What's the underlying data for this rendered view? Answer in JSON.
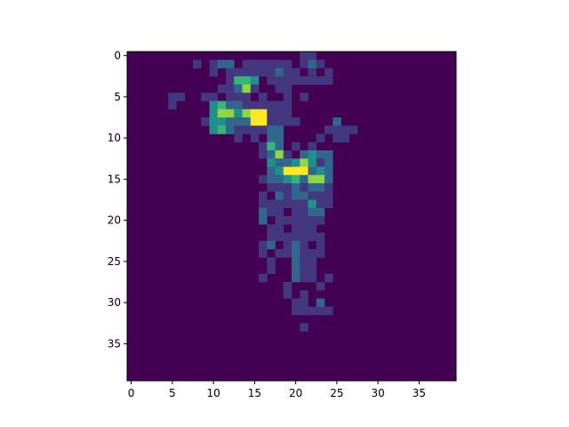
{
  "chart_data": {
    "type": "heatmap",
    "rows": 40,
    "cols": 40,
    "xlim": [
      -0.5,
      39.5
    ],
    "ylim": [
      39.5,
      -0.5
    ],
    "xticks": [
      0,
      5,
      10,
      15,
      20,
      25,
      30,
      35
    ],
    "yticks": [
      0,
      5,
      10,
      15,
      20,
      25,
      30,
      35
    ],
    "colormap": "viridis",
    "vmin": 0,
    "vmax": 6,
    "cells": [
      [
        0,
        21,
        1
      ],
      [
        0,
        22,
        1
      ],
      [
        1,
        8,
        1
      ],
      [
        1,
        10,
        1
      ],
      [
        1,
        11,
        2
      ],
      [
        1,
        12,
        2
      ],
      [
        1,
        14,
        1
      ],
      [
        1,
        15,
        1
      ],
      [
        1,
        16,
        1
      ],
      [
        1,
        17,
        1
      ],
      [
        1,
        18,
        1
      ],
      [
        1,
        19,
        1
      ],
      [
        1,
        21,
        1
      ],
      [
        1,
        22,
        2
      ],
      [
        1,
        23,
        1
      ],
      [
        2,
        10,
        1
      ],
      [
        2,
        12,
        1
      ],
      [
        2,
        13,
        1
      ],
      [
        2,
        14,
        1
      ],
      [
        2,
        15,
        1
      ],
      [
        2,
        16,
        1
      ],
      [
        2,
        17,
        1
      ],
      [
        2,
        18,
        2
      ],
      [
        2,
        19,
        1
      ],
      [
        2,
        20,
        1
      ],
      [
        2,
        22,
        1
      ],
      [
        2,
        24,
        1
      ],
      [
        3,
        12,
        1
      ],
      [
        3,
        13,
        4
      ],
      [
        3,
        14,
        4
      ],
      [
        3,
        15,
        3
      ],
      [
        3,
        17,
        1
      ],
      [
        3,
        18,
        1
      ],
      [
        3,
        19,
        1
      ],
      [
        3,
        20,
        1
      ],
      [
        3,
        21,
        1
      ],
      [
        3,
        22,
        1
      ],
      [
        3,
        23,
        1
      ],
      [
        3,
        24,
        1
      ],
      [
        4,
        11,
        1
      ],
      [
        4,
        12,
        1
      ],
      [
        4,
        13,
        2
      ],
      [
        4,
        14,
        5
      ],
      [
        4,
        15,
        1
      ],
      [
        4,
        18,
        1
      ],
      [
        4,
        19,
        1
      ],
      [
        5,
        5,
        1
      ],
      [
        5,
        6,
        1
      ],
      [
        5,
        9,
        1
      ],
      [
        5,
        10,
        1
      ],
      [
        5,
        12,
        1
      ],
      [
        5,
        13,
        1
      ],
      [
        5,
        14,
        1
      ],
      [
        5,
        16,
        1
      ],
      [
        5,
        19,
        1
      ],
      [
        5,
        21,
        1
      ],
      [
        6,
        5,
        1
      ],
      [
        6,
        10,
        3
      ],
      [
        6,
        11,
        4
      ],
      [
        6,
        12,
        2
      ],
      [
        6,
        13,
        2
      ],
      [
        6,
        14,
        1
      ],
      [
        6,
        15,
        1
      ],
      [
        6,
        16,
        1
      ],
      [
        6,
        17,
        1
      ],
      [
        6,
        18,
        1
      ],
      [
        6,
        19,
        1
      ],
      [
        7,
        10,
        3
      ],
      [
        7,
        11,
        5
      ],
      [
        7,
        12,
        5
      ],
      [
        7,
        13,
        3
      ],
      [
        7,
        14,
        5
      ],
      [
        7,
        15,
        6
      ],
      [
        7,
        16,
        6
      ],
      [
        7,
        17,
        1
      ],
      [
        7,
        18,
        1
      ],
      [
        7,
        19,
        1
      ],
      [
        8,
        9,
        1
      ],
      [
        8,
        10,
        3
      ],
      [
        8,
        11,
        3
      ],
      [
        8,
        12,
        2
      ],
      [
        8,
        13,
        2
      ],
      [
        8,
        14,
        2
      ],
      [
        8,
        15,
        6
      ],
      [
        8,
        16,
        6
      ],
      [
        8,
        17,
        1
      ],
      [
        8,
        18,
        1
      ],
      [
        8,
        19,
        1
      ],
      [
        8,
        20,
        1
      ],
      [
        8,
        25,
        2
      ],
      [
        9,
        10,
        3
      ],
      [
        9,
        11,
        4
      ],
      [
        9,
        12,
        2
      ],
      [
        9,
        13,
        1
      ],
      [
        9,
        14,
        1
      ],
      [
        9,
        15,
        1
      ],
      [
        9,
        16,
        1
      ],
      [
        9,
        17,
        2
      ],
      [
        9,
        18,
        2
      ],
      [
        9,
        24,
        1
      ],
      [
        9,
        25,
        1
      ],
      [
        9,
        26,
        1
      ],
      [
        9,
        27,
        1
      ],
      [
        10,
        13,
        1
      ],
      [
        10,
        15,
        1
      ],
      [
        10,
        17,
        2
      ],
      [
        10,
        18,
        2
      ],
      [
        10,
        23,
        1
      ],
      [
        10,
        25,
        1
      ],
      [
        10,
        26,
        1
      ],
      [
        11,
        16,
        1
      ],
      [
        11,
        17,
        4
      ],
      [
        11,
        18,
        2
      ],
      [
        11,
        20,
        1
      ],
      [
        11,
        22,
        1
      ],
      [
        12,
        16,
        1
      ],
      [
        12,
        17,
        2
      ],
      [
        12,
        18,
        5
      ],
      [
        12,
        19,
        1
      ],
      [
        12,
        21,
        2
      ],
      [
        12,
        22,
        3
      ],
      [
        12,
        23,
        2
      ],
      [
        12,
        24,
        2
      ],
      [
        13,
        17,
        3
      ],
      [
        13,
        18,
        2
      ],
      [
        13,
        19,
        2
      ],
      [
        13,
        20,
        3
      ],
      [
        13,
        21,
        5
      ],
      [
        13,
        22,
        3
      ],
      [
        13,
        23,
        1
      ],
      [
        13,
        24,
        2
      ],
      [
        14,
        17,
        2
      ],
      [
        14,
        18,
        3
      ],
      [
        14,
        19,
        6
      ],
      [
        14,
        20,
        6
      ],
      [
        14,
        21,
        6
      ],
      [
        14,
        22,
        2
      ],
      [
        14,
        23,
        3
      ],
      [
        14,
        24,
        2
      ],
      [
        15,
        16,
        1
      ],
      [
        15,
        17,
        2
      ],
      [
        15,
        18,
        2
      ],
      [
        15,
        19,
        3
      ],
      [
        15,
        20,
        4
      ],
      [
        15,
        21,
        2
      ],
      [
        15,
        22,
        5
      ],
      [
        15,
        23,
        5
      ],
      [
        15,
        24,
        2
      ],
      [
        16,
        17,
        1
      ],
      [
        16,
        18,
        1
      ],
      [
        16,
        19,
        1
      ],
      [
        16,
        20,
        2
      ],
      [
        16,
        21,
        1
      ],
      [
        16,
        22,
        2
      ],
      [
        16,
        23,
        2
      ],
      [
        16,
        24,
        1
      ],
      [
        17,
        16,
        1
      ],
      [
        17,
        18,
        2
      ],
      [
        17,
        19,
        1
      ],
      [
        17,
        20,
        2
      ],
      [
        17,
        21,
        2
      ],
      [
        17,
        22,
        1
      ],
      [
        17,
        23,
        1
      ],
      [
        17,
        24,
        1
      ],
      [
        18,
        16,
        1
      ],
      [
        18,
        17,
        1
      ],
      [
        18,
        18,
        1
      ],
      [
        18,
        19,
        1
      ],
      [
        18,
        20,
        1
      ],
      [
        18,
        21,
        1
      ],
      [
        18,
        22,
        3
      ],
      [
        18,
        23,
        1
      ],
      [
        18,
        24,
        1
      ],
      [
        19,
        16,
        2
      ],
      [
        19,
        17,
        1
      ],
      [
        19,
        18,
        1
      ],
      [
        19,
        20,
        1
      ],
      [
        19,
        21,
        1
      ],
      [
        19,
        22,
        2
      ],
      [
        19,
        23,
        2
      ],
      [
        20,
        16,
        2
      ],
      [
        20,
        18,
        1
      ],
      [
        20,
        19,
        1
      ],
      [
        20,
        20,
        1
      ],
      [
        20,
        21,
        1
      ],
      [
        20,
        22,
        1
      ],
      [
        20,
        23,
        1
      ],
      [
        21,
        17,
        1
      ],
      [
        21,
        18,
        1
      ],
      [
        21,
        20,
        1
      ],
      [
        21,
        21,
        1
      ],
      [
        21,
        22,
        1
      ],
      [
        22,
        17,
        1
      ],
      [
        22,
        18,
        1
      ],
      [
        22,
        19,
        1
      ],
      [
        22,
        20,
        1
      ],
      [
        22,
        21,
        1
      ],
      [
        22,
        22,
        1
      ],
      [
        22,
        23,
        1
      ],
      [
        23,
        16,
        1
      ],
      [
        23,
        17,
        2
      ],
      [
        23,
        19,
        1
      ],
      [
        23,
        20,
        2
      ],
      [
        23,
        21,
        1
      ],
      [
        23,
        23,
        1
      ],
      [
        24,
        16,
        1
      ],
      [
        24,
        18,
        1
      ],
      [
        24,
        19,
        1
      ],
      [
        24,
        20,
        2
      ],
      [
        24,
        21,
        1
      ],
      [
        24,
        22,
        1
      ],
      [
        24,
        23,
        1
      ],
      [
        25,
        17,
        1
      ],
      [
        25,
        20,
        2
      ],
      [
        25,
        21,
        1
      ],
      [
        25,
        22,
        1
      ],
      [
        26,
        17,
        1
      ],
      [
        26,
        20,
        2
      ],
      [
        26,
        21,
        1
      ],
      [
        26,
        22,
        1
      ],
      [
        27,
        16,
        1
      ],
      [
        27,
        20,
        2
      ],
      [
        27,
        21,
        1
      ],
      [
        27,
        22,
        1
      ],
      [
        27,
        24,
        1
      ],
      [
        28,
        19,
        1
      ],
      [
        28,
        23,
        1
      ],
      [
        29,
        19,
        1
      ],
      [
        29,
        21,
        1
      ],
      [
        30,
        20,
        1
      ],
      [
        30,
        21,
        1
      ],
      [
        30,
        23,
        2
      ],
      [
        31,
        20,
        1
      ],
      [
        31,
        21,
        1
      ],
      [
        31,
        22,
        1
      ],
      [
        31,
        23,
        1
      ],
      [
        31,
        24,
        1
      ],
      [
        33,
        21,
        1
      ]
    ]
  }
}
